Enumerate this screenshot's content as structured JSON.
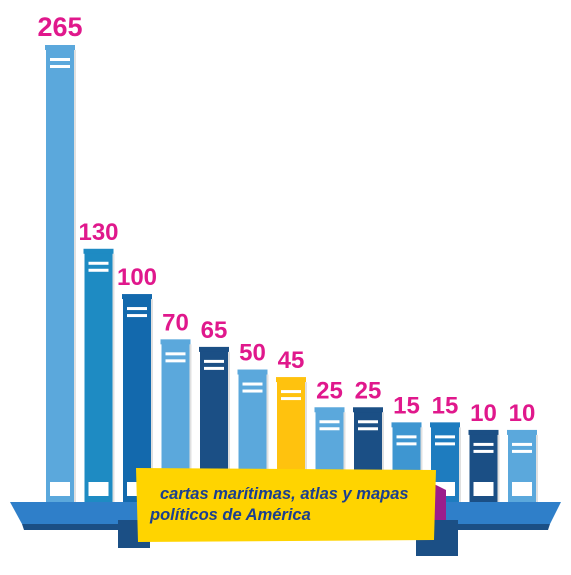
{
  "chart_data": {
    "type": "bar",
    "values": [
      265,
      130,
      100,
      70,
      65,
      50,
      45,
      25,
      25,
      15,
      15,
      10,
      10
    ],
    "bar_colors": [
      "#5ba8dc",
      "#1e8bc3",
      "#1369ad",
      "#5ba8dc",
      "#1b4f85",
      "#5ba8dc",
      "#ffc20e",
      "#5ba8dc",
      "#1b4f85",
      "#3e96d1",
      "#1e7cbf",
      "#1b4f85",
      "#5ba8dc"
    ],
    "highlight_index": 6,
    "ylim": [
      0,
      265
    ],
    "annotation": [
      "cartas marítimas, atlas y mapas",
      "políticos de América"
    ]
  },
  "colors": {
    "value_label": "#e0188c",
    "highlight": "#ffc20e",
    "banner": "#ffd400",
    "banner_fold": "#9b1e8c",
    "base_top": "#2f7fc9",
    "base_dark": "#1b4f85",
    "caption_text": "#1b3f8f"
  }
}
